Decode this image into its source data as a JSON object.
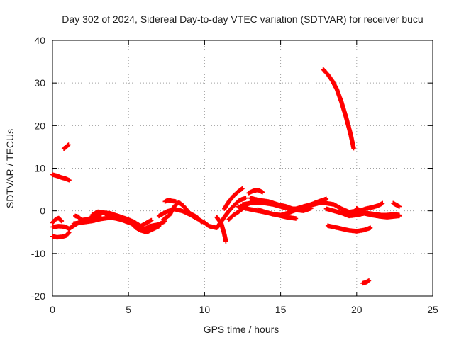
{
  "chart_data": {
    "type": "scatter",
    "title": "Day 302 of 2024, Sidereal Day-to-day VTEC variation (SDTVAR) for receiver bucu",
    "xlabel": "GPS time / hours",
    "ylabel": "SDTVAR / TECUs",
    "xlim": [
      0,
      25
    ],
    "ylim": [
      -20,
      40
    ],
    "xticks": [
      0,
      5,
      10,
      15,
      20,
      25
    ],
    "yticks": [
      -20,
      -10,
      0,
      10,
      20,
      30,
      40
    ],
    "grid": true,
    "marker": "+",
    "series_color": "#ff0000",
    "segments": [
      {
        "name": "seg-early-high",
        "points": [
          [
            0.0,
            8.5
          ],
          [
            0.3,
            8.2
          ],
          [
            0.6,
            7.8
          ],
          [
            0.9,
            7.5
          ],
          [
            1.1,
            7.2
          ]
        ]
      },
      {
        "name": "seg-early-spike",
        "points": [
          [
            0.75,
            14.6
          ],
          [
            0.9,
            15.0
          ],
          [
            1.05,
            15.5
          ]
        ]
      },
      {
        "name": "seg-start-low",
        "points": [
          [
            0.0,
            -6.0
          ],
          [
            0.3,
            -6.2
          ],
          [
            0.6,
            -6.1
          ],
          [
            0.9,
            -5.8
          ],
          [
            1.1,
            -5.0
          ]
        ]
      },
      {
        "name": "seg-start-mid",
        "points": [
          [
            0.0,
            -3.8
          ],
          [
            0.4,
            -3.6
          ],
          [
            0.8,
            -3.7
          ],
          [
            1.1,
            -4.2
          ],
          [
            1.4,
            -3.5
          ],
          [
            1.8,
            -2.6
          ],
          [
            2.2,
            -2.2
          ],
          [
            2.7,
            -2.0
          ],
          [
            3.2,
            -1.6
          ]
        ]
      },
      {
        "name": "seg-start-dip",
        "points": [
          [
            0.0,
            -2.8
          ],
          [
            0.2,
            -2.0
          ],
          [
            0.4,
            -1.7
          ],
          [
            0.6,
            -2.4
          ]
        ]
      },
      {
        "name": "seg-morning-a",
        "points": [
          [
            1.4,
            -3.0
          ],
          [
            2.0,
            -2.7
          ],
          [
            2.6,
            -2.4
          ],
          [
            3.2,
            -1.9
          ],
          [
            3.8,
            -1.6
          ],
          [
            4.4,
            -1.9
          ],
          [
            5.0,
            -2.4
          ],
          [
            5.6,
            -3.2
          ],
          [
            6.0,
            -4.4
          ],
          [
            6.4,
            -3.6
          ],
          [
            7.0,
            -3.2
          ],
          [
            7.4,
            -2.4
          ]
        ]
      },
      {
        "name": "seg-morning-b",
        "points": [
          [
            1.5,
            -1.2
          ],
          [
            1.7,
            -1.4
          ],
          [
            1.9,
            -2.2
          ],
          [
            2.3,
            -2.0
          ],
          [
            2.8,
            -1.3
          ],
          [
            3.3,
            -0.4
          ],
          [
            3.8,
            -0.6
          ],
          [
            4.3,
            -1.2
          ],
          [
            4.8,
            -1.8
          ],
          [
            5.3,
            -2.5
          ],
          [
            5.8,
            -3.6
          ],
          [
            6.1,
            -3.0
          ],
          [
            6.5,
            -2.2
          ]
        ]
      },
      {
        "name": "seg-morning-c",
        "points": [
          [
            2.6,
            -1.0
          ],
          [
            3.0,
            -0.2
          ],
          [
            3.4,
            -0.5
          ],
          [
            3.8,
            -1.4
          ],
          [
            4.6,
            -2.2
          ],
          [
            5.2,
            -3.0
          ],
          [
            5.5,
            -4.0
          ],
          [
            5.8,
            -4.6
          ],
          [
            6.2,
            -5.0
          ],
          [
            6.6,
            -4.3
          ],
          [
            7.0,
            -3.6
          ]
        ]
      },
      {
        "name": "seg-mid-rise",
        "points": [
          [
            7.3,
            -2.0
          ],
          [
            7.7,
            -1.0
          ],
          [
            8.0,
            1.0
          ],
          [
            8.3,
            2.0
          ],
          [
            8.6,
            1.2
          ],
          [
            9.0,
            -0.5
          ],
          [
            9.5,
            -1.5
          ],
          [
            9.8,
            -2.6
          ]
        ]
      },
      {
        "name": "seg-mid-wide",
        "points": [
          [
            7.0,
            -1.2
          ],
          [
            7.5,
            -0.2
          ],
          [
            8.0,
            0.4
          ],
          [
            8.5,
            0.0
          ],
          [
            9.0,
            -0.8
          ],
          [
            9.5,
            -1.8
          ],
          [
            10.0,
            -2.8
          ],
          [
            10.3,
            -3.6
          ],
          [
            10.8,
            -4.0
          ],
          [
            11.0,
            -3.0
          ],
          [
            11.3,
            -1.5
          ],
          [
            11.6,
            0.0
          ],
          [
            12.0,
            1.5
          ],
          [
            12.3,
            2.5
          ],
          [
            12.7,
            3.0
          ]
        ]
      },
      {
        "name": "seg-mid-top",
        "points": [
          [
            7.4,
            2.2
          ],
          [
            7.6,
            2.5
          ],
          [
            7.9,
            2.3
          ],
          [
            8.1,
            2.2
          ]
        ]
      },
      {
        "name": "seg-dip-midday",
        "points": [
          [
            10.8,
            -1.5
          ],
          [
            11.1,
            -3.0
          ],
          [
            11.3,
            -5.5
          ],
          [
            11.4,
            -7.2
          ]
        ]
      },
      {
        "name": "seg-midday-hump",
        "points": [
          [
            11.3,
            0.5
          ],
          [
            11.6,
            2.2
          ],
          [
            11.9,
            3.5
          ],
          [
            12.2,
            4.5
          ],
          [
            12.5,
            5.3
          ]
        ]
      },
      {
        "name": "seg-midday-dip",
        "points": [
          [
            11.6,
            -2.0
          ],
          [
            11.9,
            -1.0
          ],
          [
            12.2,
            -0.3
          ],
          [
            12.5,
            0.5
          ],
          [
            12.8,
            1.5
          ],
          [
            13.1,
            2.0
          ]
        ]
      },
      {
        "name": "seg-small-hump",
        "points": [
          [
            12.9,
            4.2
          ],
          [
            13.2,
            4.7
          ],
          [
            13.5,
            4.9
          ],
          [
            13.8,
            4.4
          ]
        ]
      },
      {
        "name": "seg-afternoon-a",
        "points": [
          [
            12.5,
            1.5
          ],
          [
            13.0,
            1.8
          ],
          [
            13.5,
            2.0
          ],
          [
            14.0,
            1.8
          ],
          [
            14.5,
            1.5
          ],
          [
            15.0,
            1.0
          ],
          [
            15.5,
            0.5
          ],
          [
            16.0,
            0.5
          ],
          [
            16.5,
            1.0
          ],
          [
            17.0,
            1.5
          ],
          [
            17.5,
            2.2
          ],
          [
            18.0,
            2.8
          ]
        ]
      },
      {
        "name": "seg-afternoon-b",
        "points": [
          [
            12.2,
            1.0
          ],
          [
            12.8,
            0.5
          ],
          [
            13.5,
            0.0
          ],
          [
            14.2,
            -0.5
          ],
          [
            14.8,
            -1.0
          ],
          [
            15.4,
            -1.5
          ],
          [
            16.0,
            -1.8
          ]
        ]
      },
      {
        "name": "seg-afternoon-c",
        "points": [
          [
            13.0,
            3.0
          ],
          [
            13.6,
            2.5
          ],
          [
            14.2,
            2.2
          ],
          [
            14.8,
            1.5
          ],
          [
            15.4,
            1.0
          ],
          [
            16.0,
            0.2
          ],
          [
            16.5,
            0.0
          ],
          [
            17.0,
            0.6
          ]
        ]
      },
      {
        "name": "seg-afternoon-d",
        "points": [
          [
            13.5,
            0.3
          ],
          [
            14.0,
            -0.3
          ],
          [
            14.5,
            -0.8
          ],
          [
            15.0,
            -1.0
          ],
          [
            15.5,
            -0.5
          ],
          [
            16.0,
            0.2
          ],
          [
            16.5,
            0.8
          ],
          [
            17.0,
            1.3
          ],
          [
            17.5,
            1.8
          ],
          [
            18.0,
            1.8
          ],
          [
            18.5,
            1.5
          ],
          [
            19.0,
            0.5
          ],
          [
            19.5,
            -0.3
          ],
          [
            20.0,
            0.0
          ]
        ]
      },
      {
        "name": "seg-evening-a",
        "points": [
          [
            18.0,
            0.5
          ],
          [
            18.5,
            0.0
          ],
          [
            19.0,
            -0.5
          ],
          [
            19.5,
            -1.2
          ],
          [
            20.0,
            -1.0
          ],
          [
            20.5,
            -0.6
          ],
          [
            21.0,
            -1.0
          ],
          [
            21.5,
            -1.3
          ],
          [
            22.0,
            -1.5
          ],
          [
            22.5,
            -1.3
          ],
          [
            22.8,
            -1.2
          ]
        ]
      },
      {
        "name": "seg-evening-b",
        "points": [
          [
            19.8,
            -0.2
          ],
          [
            20.2,
            0.0
          ],
          [
            20.6,
            0.5
          ],
          [
            21.0,
            0.8
          ],
          [
            21.4,
            1.2
          ],
          [
            21.7,
            1.8
          ]
        ]
      },
      {
        "name": "seg-evening-c",
        "points": [
          [
            20.0,
            0.6
          ],
          [
            20.4,
            -0.5
          ],
          [
            20.8,
            -0.6
          ],
          [
            21.2,
            -0.8
          ],
          [
            21.6,
            -1.0
          ],
          [
            22.0,
            -1.0
          ],
          [
            22.5,
            -0.8
          ],
          [
            22.8,
            -1.0
          ]
        ]
      },
      {
        "name": "seg-late-small",
        "points": [
          [
            22.4,
            1.8
          ],
          [
            22.6,
            1.4
          ],
          [
            22.8,
            1.0
          ]
        ]
      },
      {
        "name": "seg-neg-band",
        "points": [
          [
            18.1,
            -3.5
          ],
          [
            18.5,
            -3.8
          ],
          [
            19.0,
            -4.2
          ],
          [
            19.5,
            -4.6
          ],
          [
            20.0,
            -4.8
          ],
          [
            20.5,
            -4.5
          ],
          [
            20.9,
            -4.0
          ]
        ]
      },
      {
        "name": "seg-big-spike",
        "points": [
          [
            17.8,
            33.2
          ],
          [
            18.1,
            32.0
          ],
          [
            18.4,
            30.5
          ],
          [
            18.7,
            28.5
          ],
          [
            19.0,
            25.5
          ],
          [
            19.3,
            22.0
          ],
          [
            19.6,
            18.0
          ],
          [
            19.8,
            14.7
          ]
        ]
      },
      {
        "name": "seg-low-spike",
        "points": [
          [
            20.4,
            -17.0
          ],
          [
            20.6,
            -16.8
          ],
          [
            20.8,
            -16.4
          ]
        ]
      }
    ]
  }
}
